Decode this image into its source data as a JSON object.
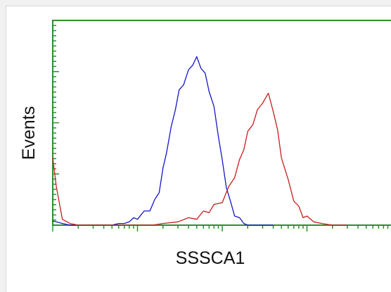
{
  "chart_data": {
    "type": "histogram",
    "title": "",
    "xlabel": "SSSCA1",
    "ylabel": "Events",
    "x_scale": "log",
    "xlim": [
      1,
      10000
    ],
    "ylim": [
      0,
      1
    ],
    "grid": false,
    "frame_color": "#2f8f2f",
    "series": [
      {
        "color": "#1515c8",
        "x": [
          1.0,
          1.1,
          1.3,
          1.6,
          2,
          3,
          4,
          5,
          6,
          7,
          8,
          9,
          10,
          12,
          14,
          16,
          18,
          20,
          22,
          25,
          28,
          31,
          35,
          40,
          45,
          50,
          56,
          63,
          70,
          80,
          90,
          100,
          112,
          125,
          140,
          160,
          180,
          200,
          240,
          300,
          400
        ],
        "y": [
          0.04,
          0.02,
          0.01,
          0.0,
          0.0,
          0.0,
          0.0,
          0.0,
          0.01,
          0.01,
          0.02,
          0.03,
          0.05,
          0.07,
          0.1,
          0.14,
          0.21,
          0.33,
          0.45,
          0.58,
          0.71,
          0.8,
          0.86,
          0.92,
          0.98,
          1.0,
          0.96,
          0.9,
          0.82,
          0.7,
          0.55,
          0.38,
          0.24,
          0.13,
          0.07,
          0.03,
          0.01,
          0.0,
          0.0,
          0.0,
          0.0
        ]
      },
      {
        "color": "#c81e1e",
        "x": [
          1.0,
          1.1,
          1.3,
          1.6,
          2,
          3,
          4,
          5,
          7,
          10,
          15,
          20,
          30,
          40,
          50,
          60,
          70,
          80,
          100,
          120,
          140,
          160,
          180,
          200,
          230,
          260,
          300,
          350,
          400,
          450,
          500,
          600,
          700,
          800,
          900,
          1000,
          1200,
          1500,
          2000,
          3000
        ],
        "y": [
          0.42,
          0.22,
          0.05,
          0.01,
          0.0,
          0.0,
          0.0,
          0.0,
          0.0,
          0.0,
          0.0,
          0.01,
          0.02,
          0.03,
          0.05,
          0.07,
          0.09,
          0.11,
          0.15,
          0.22,
          0.3,
          0.38,
          0.47,
          0.55,
          0.62,
          0.68,
          0.75,
          0.78,
          0.7,
          0.56,
          0.42,
          0.26,
          0.16,
          0.1,
          0.06,
          0.04,
          0.02,
          0.01,
          0.0,
          0.0
        ]
      }
    ]
  }
}
